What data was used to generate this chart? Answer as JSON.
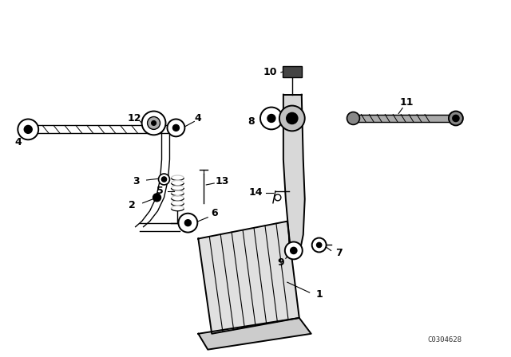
{
  "background_color": "#ffffff",
  "line_color": "#000000",
  "catalog_number": "C0304628",
  "figsize": [
    6.4,
    4.48
  ],
  "dpi": 100
}
